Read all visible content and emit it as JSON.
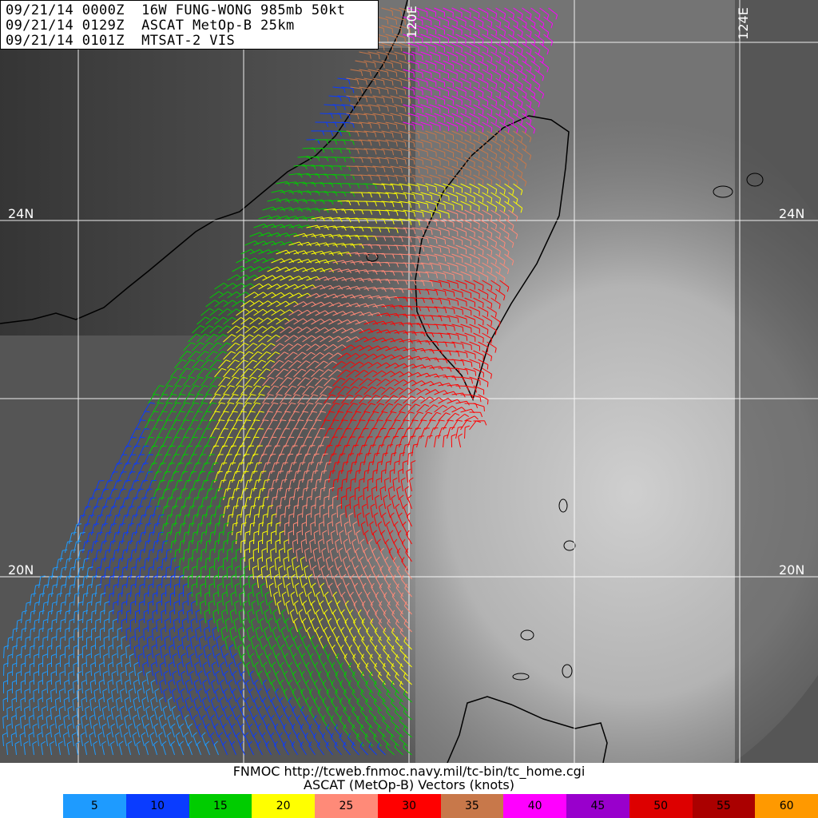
{
  "header": {
    "line1": "09/21/14 0000Z  16W FUNG-WONG 985mb 50kt",
    "line2": "09/21/14 0129Z  ASCAT MetOp-B 25km",
    "line3": "09/21/14 0101Z  MTSAT-2 VIS"
  },
  "grid_labels": {
    "lat_24_left": "24N",
    "lat_24_right": "24N",
    "lat_20_left": "20N",
    "lat_20_right": "20N",
    "lon_120": "120E",
    "lon_124": "124E"
  },
  "footer": {
    "credit": "FNMOC http://tcweb.fnmoc.navy.mil/tc-bin/tc_home.cgi",
    "legend_title": "ASCAT (MetOp-B) Vectors (knots)"
  },
  "scale": [
    {
      "label": "5",
      "color": "#1e9bff"
    },
    {
      "label": "10",
      "color": "#0a3cff"
    },
    {
      "label": "15",
      "color": "#00cc00"
    },
    {
      "label": "20",
      "color": "#ffff00"
    },
    {
      "label": "25",
      "color": "#ff8a78"
    },
    {
      "label": "30",
      "color": "#ff0000"
    },
    {
      "label": "35",
      "color": "#c8784a"
    },
    {
      "label": "40",
      "color": "#ff00ff"
    },
    {
      "label": "45",
      "color": "#9900cc"
    },
    {
      "label": "50",
      "color": "#dd0000"
    },
    {
      "label": "55",
      "color": "#aa0000"
    },
    {
      "label": "60",
      "color": "#ff9900"
    }
  ]
}
